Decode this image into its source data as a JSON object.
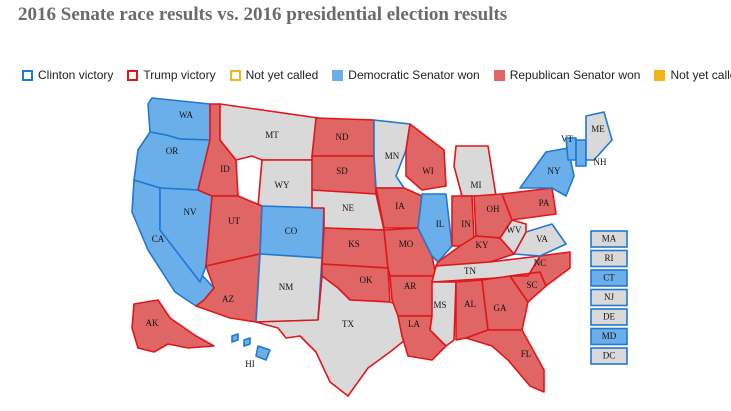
{
  "title": "2016 Senate race results vs. 2016 presidential election results",
  "legend": {
    "items": [
      {
        "label": "Clinton victory",
        "kind": "outline",
        "color": "#1f78d1"
      },
      {
        "label": "Trump victory",
        "kind": "outline",
        "color": "#e0161b"
      },
      {
        "label": "Not yet called",
        "kind": "outline",
        "color": "#f2b515"
      },
      {
        "label": "Democratic Senator won",
        "kind": "fill",
        "color": "#6aaeea"
      },
      {
        "label": "Republican Senator won",
        "kind": "fill",
        "color": "#e06666"
      },
      {
        "label": "Not yet called",
        "kind": "fill",
        "color": "#f2b515"
      }
    ]
  },
  "colors": {
    "dem_fill": "#6aaeea",
    "rep_fill": "#e06666",
    "none_fill": "#d9d9d9",
    "clinton_stroke": "#1f78d1",
    "trump_stroke": "#e0161b"
  },
  "states": [
    {
      "abbr": "WA",
      "senate": "dem",
      "president": "clinton"
    },
    {
      "abbr": "OR",
      "senate": "dem",
      "president": "clinton"
    },
    {
      "abbr": "CA",
      "senate": "dem",
      "president": "clinton"
    },
    {
      "abbr": "NV",
      "senate": "dem",
      "president": "clinton"
    },
    {
      "abbr": "ID",
      "senate": "rep",
      "president": "trump"
    },
    {
      "abbr": "MT",
      "senate": "none",
      "president": "trump"
    },
    {
      "abbr": "WY",
      "senate": "none",
      "president": "trump"
    },
    {
      "abbr": "UT",
      "senate": "rep",
      "president": "trump"
    },
    {
      "abbr": "AZ",
      "senate": "rep",
      "president": "trump"
    },
    {
      "abbr": "CO",
      "senate": "dem",
      "president": "clinton"
    },
    {
      "abbr": "NM",
      "senate": "none",
      "president": "clinton"
    },
    {
      "abbr": "ND",
      "senate": "rep",
      "president": "trump"
    },
    {
      "abbr": "SD",
      "senate": "rep",
      "president": "trump"
    },
    {
      "abbr": "NE",
      "senate": "none",
      "president": "trump"
    },
    {
      "abbr": "KS",
      "senate": "rep",
      "president": "trump"
    },
    {
      "abbr": "OK",
      "senate": "rep",
      "president": "trump"
    },
    {
      "abbr": "TX",
      "senate": "none",
      "president": "trump"
    },
    {
      "abbr": "MN",
      "senate": "none",
      "president": "clinton"
    },
    {
      "abbr": "IA",
      "senate": "rep",
      "president": "trump"
    },
    {
      "abbr": "MO",
      "senate": "rep",
      "president": "trump"
    },
    {
      "abbr": "AR",
      "senate": "rep",
      "president": "trump"
    },
    {
      "abbr": "LA",
      "senate": "rep",
      "president": "trump"
    },
    {
      "abbr": "WI",
      "senate": "rep",
      "president": "trump"
    },
    {
      "abbr": "IL",
      "senate": "dem",
      "president": "clinton"
    },
    {
      "abbr": "MI",
      "senate": "none",
      "president": "trump"
    },
    {
      "abbr": "IN",
      "senate": "rep",
      "president": "trump"
    },
    {
      "abbr": "OH",
      "senate": "rep",
      "president": "trump"
    },
    {
      "abbr": "KY",
      "senate": "rep",
      "president": "trump"
    },
    {
      "abbr": "TN",
      "senate": "none",
      "president": "trump"
    },
    {
      "abbr": "MS",
      "senate": "none",
      "president": "trump"
    },
    {
      "abbr": "AL",
      "senate": "rep",
      "president": "trump"
    },
    {
      "abbr": "GA",
      "senate": "rep",
      "president": "trump"
    },
    {
      "abbr": "FL",
      "senate": "rep",
      "president": "trump"
    },
    {
      "abbr": "SC",
      "senate": "rep",
      "president": "trump"
    },
    {
      "abbr": "NC",
      "senate": "rep",
      "president": "trump"
    },
    {
      "abbr": "VA",
      "senate": "none",
      "president": "clinton"
    },
    {
      "abbr": "WV",
      "senate": "none",
      "president": "trump"
    },
    {
      "abbr": "PA",
      "senate": "rep",
      "president": "trump"
    },
    {
      "abbr": "NY",
      "senate": "dem",
      "president": "clinton"
    },
    {
      "abbr": "VT",
      "senate": "dem",
      "president": "clinton"
    },
    {
      "abbr": "NH",
      "senate": "dem",
      "president": "clinton"
    },
    {
      "abbr": "ME",
      "senate": "none",
      "president": "clinton"
    },
    {
      "abbr": "AK",
      "senate": "rep",
      "president": "trump"
    },
    {
      "abbr": "HI",
      "senate": "dem",
      "president": "clinton"
    }
  ],
  "small_states": [
    {
      "abbr": "MA",
      "senate": "none",
      "president": "clinton"
    },
    {
      "abbr": "RI",
      "senate": "none",
      "president": "clinton"
    },
    {
      "abbr": "CT",
      "senate": "dem",
      "president": "clinton"
    },
    {
      "abbr": "NJ",
      "senate": "none",
      "president": "clinton"
    },
    {
      "abbr": "DE",
      "senate": "none",
      "president": "clinton"
    },
    {
      "abbr": "MD",
      "senate": "dem",
      "president": "clinton"
    },
    {
      "abbr": "DC",
      "senate": "none",
      "president": "clinton"
    }
  ]
}
